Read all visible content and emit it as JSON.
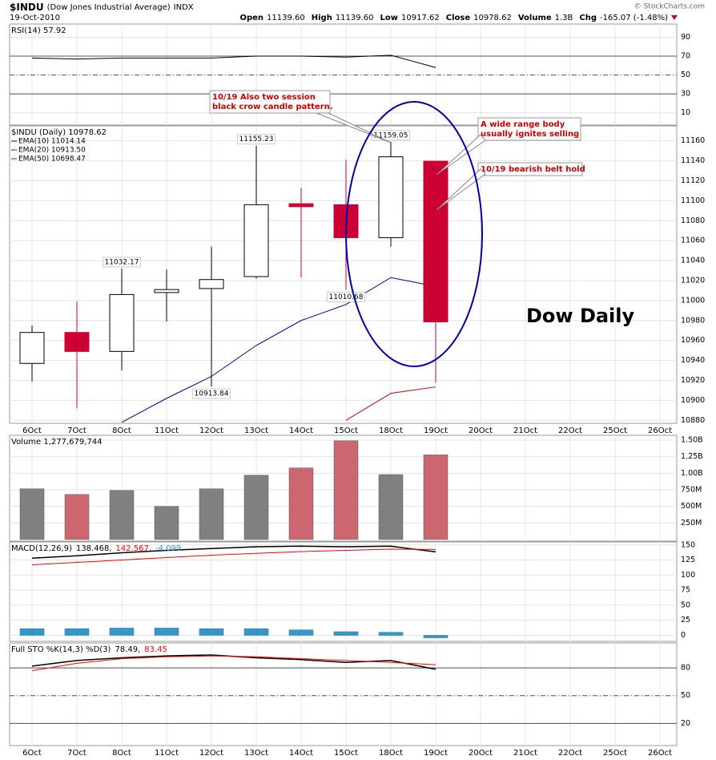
{
  "header": {
    "symbol": "$INDU",
    "name": "(Dow Jones Industrial Average)",
    "exchange": "INDX",
    "date": "19-Oct-2010",
    "copyright": "© StockCharts.com",
    "stats": [
      {
        "label": "Open",
        "value": "11139.60"
      },
      {
        "label": "High",
        "value": "11139.60"
      },
      {
        "label": "Low",
        "value": "10917.62"
      },
      {
        "label": "Close",
        "value": "10978.62"
      },
      {
        "label": "Volume",
        "value": "1.3B"
      },
      {
        "label": "Chg",
        "value": "-165.07 (-1.48%)"
      }
    ]
  },
  "chart_data": [
    {
      "type": "line",
      "title": "RSI(14) 57.92",
      "color": "#000000",
      "values": [
        68,
        67,
        68,
        68,
        68,
        70,
        70,
        69,
        71,
        57.92,
        null,
        null,
        null,
        null,
        null
      ],
      "ylim": [
        -3,
        104
      ],
      "yticks": [
        10,
        30,
        50,
        70,
        90
      ],
      "grid": true,
      "bands": [
        30,
        70
      ],
      "midline": 50
    },
    {
      "type": "candlestick",
      "title": "$INDU (Daily) 10978.62",
      "categories": [
        "6Oct",
        "7Oct",
        "8Oct",
        "11Oct",
        "12Oct",
        "13Oct",
        "14Oct",
        "15Oct",
        "18Oct",
        "19Oct",
        "20Oct",
        "21Oct",
        "22Oct",
        "25Oct",
        "26Oct"
      ],
      "open": [
        10937,
        10968,
        10949,
        11008,
        11012,
        11024,
        11097,
        11096,
        11063,
        11139.6,
        null,
        null,
        null,
        null,
        null
      ],
      "high": [
        10975,
        10999,
        11032.17,
        11031,
        11054,
        11155.23,
        11113,
        11141,
        11159.05,
        11139.6,
        null,
        null,
        null,
        null,
        null
      ],
      "low": [
        10919,
        10892,
        10930,
        10979,
        10913.84,
        11022,
        11023,
        11010.68,
        11054,
        10917.62,
        null,
        null,
        null,
        null,
        null
      ],
      "close": [
        10968,
        10949,
        11006,
        11011,
        11021,
        11096,
        11094,
        11063,
        11144,
        10978.62,
        null,
        null,
        null,
        null,
        null
      ],
      "high_labels": [
        null,
        null,
        "11032.17",
        null,
        null,
        "11155.23",
        null,
        null,
        "11159.05",
        null,
        null,
        null,
        null,
        null,
        null
      ],
      "low_labels": [
        null,
        null,
        null,
        null,
        "10913.84",
        null,
        null,
        "11010.68",
        null,
        null,
        null,
        null,
        null,
        null,
        null
      ],
      "up_color": "#ffffff",
      "down_color": "#cc0033",
      "series": [
        {
          "name": "EMA(10) 11014.14",
          "color": "#000099",
          "values": [
            null,
            null,
            10878,
            10902,
            10924,
            10955,
            10980,
            10996,
            11023,
            11014.14,
            null,
            null,
            null,
            null,
            null
          ]
        },
        {
          "name": "EMA(20) 10913.50",
          "color": "#cc0000",
          "values": [
            null,
            null,
            null,
            null,
            null,
            null,
            null,
            10880,
            10907,
            10913.5,
            null,
            null,
            null,
            null,
            null
          ]
        },
        {
          "name": "EMA(50) 10698.47",
          "color": "#006600",
          "values": [
            null,
            null,
            null,
            null,
            null,
            null,
            null,
            null,
            null,
            null,
            null,
            null,
            null,
            null,
            null
          ]
        }
      ],
      "ylim": [
        10877,
        11175
      ],
      "yticks": [
        10880,
        10900,
        10920,
        10940,
        10960,
        10980,
        11000,
        11020,
        11040,
        11060,
        11080,
        11100,
        11120,
        11140,
        11160
      ],
      "grid": true,
      "annotations": [
        {
          "lines": [
            "10/19 Also two session",
            "black crow candle pattern."
          ]
        },
        {
          "lines": [
            "A wide range body",
            "usually ignites selling"
          ]
        },
        {
          "lines": [
            "10/19 bearish belt hold"
          ]
        }
      ],
      "big_label": "Dow Daily"
    },
    {
      "type": "bar",
      "title": "Volume 1,277,679,744",
      "values": [
        765000000,
        680000000,
        740000000,
        500000000,
        765000000,
        970000000,
        1080000000,
        1490000000,
        980000000,
        1277679744,
        null,
        null,
        null,
        null,
        null
      ],
      "colors": [
        "#808080",
        "#cc6670",
        "#808080",
        "#808080",
        "#808080",
        "#808080",
        "#cc6670",
        "#cc6670",
        "#808080",
        "#cc6670",
        null,
        null,
        null,
        null,
        null
      ],
      "ylim": [
        -25000000,
        1573000000
      ],
      "yticks": [
        {
          "value": 250000000,
          "label": "250M"
        },
        {
          "value": 500000000,
          "label": "500M"
        },
        {
          "value": 750000000,
          "label": "750M"
        },
        {
          "value": 1000000000,
          "label": "1.00B"
        },
        {
          "value": 1250000000,
          "label": "1.25B"
        },
        {
          "value": 1500000000,
          "label": "1.50B"
        }
      ],
      "grid": true
    },
    {
      "type": "line",
      "title": "MACD(12,26,9)",
      "series": [
        {
          "name": "138.468,",
          "color": "#000000",
          "values": [
            128,
            132,
            137,
            141,
            144,
            147,
            148,
            147,
            148,
            138.468,
            null,
            null,
            null,
            null,
            null
          ]
        },
        {
          "name": "142.567,",
          "color": "#ff0000",
          "values": [
            117,
            121,
            125,
            129,
            133,
            136,
            139,
            141,
            143,
            142.567,
            null,
            null,
            null,
            null,
            null
          ]
        },
        {
          "name": "-4.099",
          "color": "#3399cc",
          "kind": "histogram",
          "values": [
            11,
            11,
            12,
            12,
            11,
            11,
            9,
            6,
            5,
            -4.099,
            null,
            null,
            null,
            null,
            null
          ]
        }
      ],
      "ylim": [
        -10,
        155
      ],
      "yticks": [
        0,
        25,
        50,
        75,
        100,
        125,
        150
      ],
      "grid": true
    },
    {
      "type": "line",
      "title": "Full STO %K(14,3) %D(3)",
      "categories": [
        "6Oct",
        "7Oct",
        "8Oct",
        "11Oct",
        "12Oct",
        "13Oct",
        "14Oct",
        "15Oct",
        "18Oct",
        "19Oct",
        "20Oct",
        "21Oct",
        "22Oct",
        "25Oct",
        "26Oct"
      ],
      "series": [
        {
          "name": "78.49,",
          "color": "#000000",
          "values": [
            82,
            88,
            91,
            93,
            94,
            91,
            89,
            86,
            88,
            78.49,
            null,
            null,
            null,
            null,
            null
          ]
        },
        {
          "name": "83.45",
          "color": "#ff0000",
          "values": [
            77,
            85,
            90,
            92,
            93,
            92,
            90,
            88,
            86,
            83.45,
            null,
            null,
            null,
            null,
            null
          ]
        }
      ],
      "ylim": [
        -4,
        107
      ],
      "yticks": [
        20,
        50,
        80
      ],
      "grid": true,
      "bands": [
        20,
        80
      ],
      "midline": 50
    }
  ]
}
